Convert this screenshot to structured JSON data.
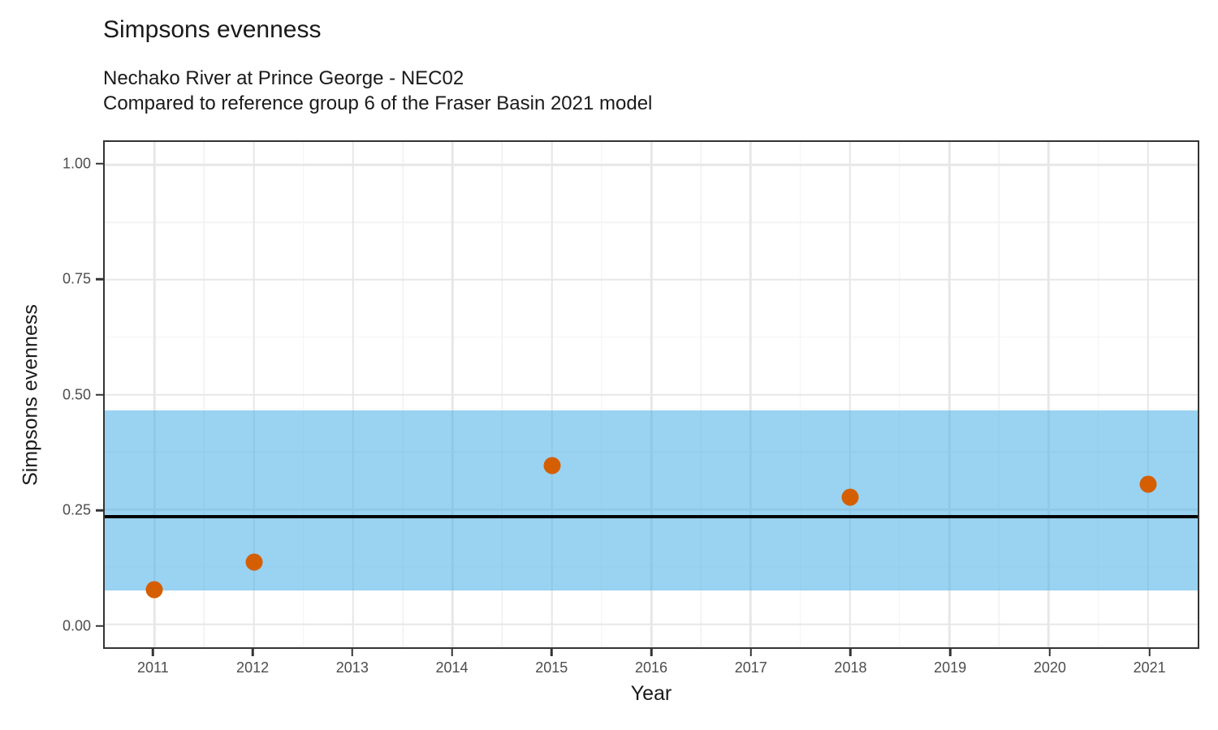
{
  "chart_data": {
    "type": "scatter",
    "title": "Simpsons evenness",
    "subtitle": [
      "Nechako River at Prince George - NEC02",
      "Compared to reference group 6 of the Fraser Basin 2021 model"
    ],
    "xlabel": "Year",
    "ylabel": "Simpsons evenness",
    "xlim": [
      2010.5,
      2021.5
    ],
    "ylim": [
      -0.05,
      1.05
    ],
    "x_ticks": [
      2011,
      2012,
      2013,
      2014,
      2015,
      2016,
      2017,
      2018,
      2019,
      2020,
      2021
    ],
    "x_tick_labels": [
      "2011",
      "2012",
      "2013",
      "2014",
      "2015",
      "2016",
      "2017",
      "2018",
      "2019",
      "2020",
      "2021"
    ],
    "x_minor_gridlines": [
      2011.5,
      2012.5,
      2013.5,
      2014.5,
      2015.5,
      2016.5,
      2017.5,
      2018.5,
      2019.5,
      2020.5
    ],
    "y_ticks": [
      0.0,
      0.25,
      0.5,
      0.75,
      1.0
    ],
    "y_tick_labels": [
      "0.00",
      "0.25",
      "0.50",
      "0.75",
      "1.00"
    ],
    "y_minor_gridlines": [
      0.125,
      0.375,
      0.625,
      0.875
    ],
    "grid": true,
    "legend": false,
    "points": {
      "x": [
        2011,
        2012,
        2015,
        2018,
        2021
      ],
      "y": [
        0.075,
        0.136,
        0.345,
        0.277,
        0.305
      ]
    },
    "reference_band": {
      "ymin": 0.074,
      "ymax": 0.465
    },
    "reference_line": {
      "y": 0.235
    },
    "colors": {
      "point": "#D55E00",
      "band": "#56B4E9",
      "band_opacity": "0.6",
      "reference_line": "#000000",
      "grid_major": "#E7E7E7",
      "grid_minor": "#F3F3F3",
      "panel_border": "#343434",
      "tick": "#333333",
      "tick_label": "#4D4D4D",
      "text": "#1A1A1A"
    }
  }
}
